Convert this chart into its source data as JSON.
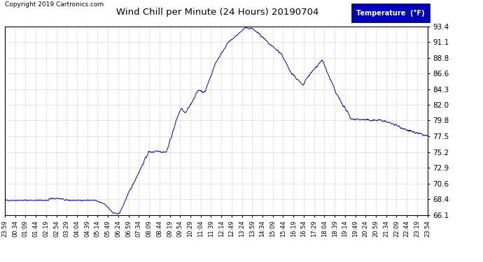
{
  "title": "Wind Chill per Minute (24 Hours) 20190704",
  "copyright_text": "Copyright 2019 Cartronics.com",
  "legend_label": "Temperature  (°F)",
  "line_color": "#0000CC",
  "background_color": "#ffffff",
  "grid_color": "#b0b0b0",
  "ylim": [
    66.1,
    93.4
  ],
  "yticks": [
    66.1,
    68.4,
    70.6,
    72.9,
    75.2,
    77.5,
    79.8,
    82.0,
    84.3,
    86.6,
    88.8,
    91.1,
    93.4
  ],
  "x_labels": [
    "23:59",
    "00:34",
    "01:09",
    "01:44",
    "02:19",
    "02:54",
    "03:29",
    "04:04",
    "04:39",
    "05:14",
    "05:49",
    "06:24",
    "06:59",
    "07:34",
    "08:09",
    "08:44",
    "09:19",
    "09:54",
    "10:29",
    "11:04",
    "11:39",
    "12:14",
    "12:49",
    "13:24",
    "13:59",
    "14:34",
    "15:09",
    "15:44",
    "16:19",
    "16:54",
    "17:29",
    "18:04",
    "18:39",
    "19:14",
    "19:49",
    "20:24",
    "20:59",
    "21:34",
    "22:09",
    "22:44",
    "23:19",
    "23:54"
  ]
}
